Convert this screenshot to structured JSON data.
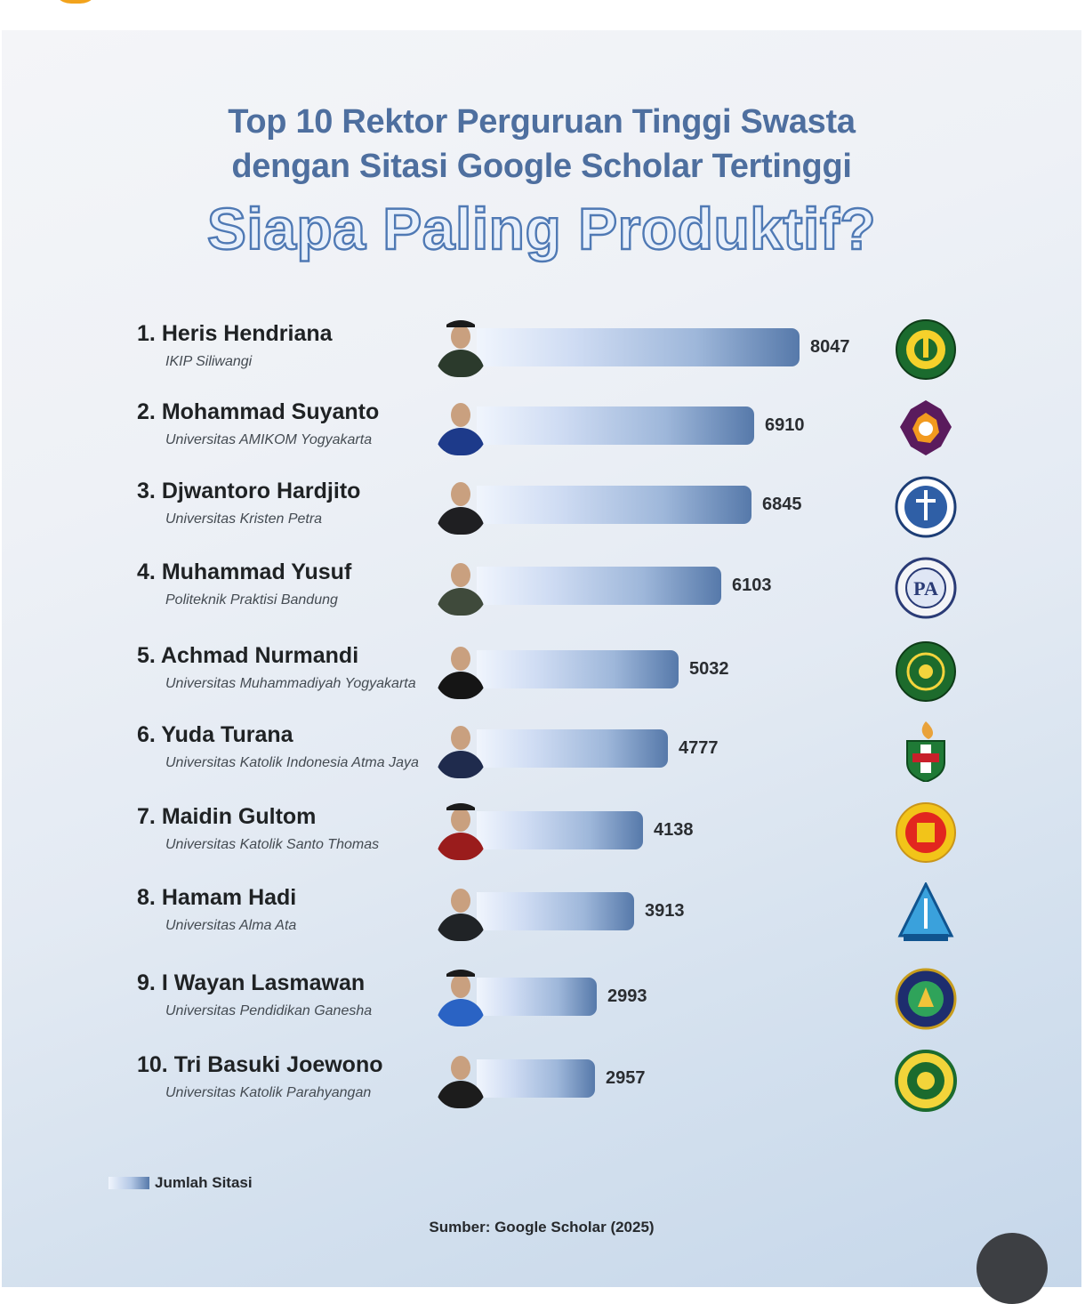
{
  "header": {
    "title_lines": [
      "Top 10 Rektor Perguruan Tinggi Swasta",
      "dengan Sitasi Google Scholar Tertinggi"
    ],
    "subtitle": "Siapa Paling Produktif?"
  },
  "legend": {
    "label": "Jumlah Sitasi"
  },
  "source": "Sumber: Google Scholar (2025)",
  "colors": {
    "title": "#4e6f9f",
    "subtitle_outline": "#4f79b4",
    "bar_start": "#f0f5fd",
    "bar_end": "#5679aa"
  },
  "chart_data": {
    "type": "bar",
    "orientation": "horizontal",
    "title": "Top 10 Rektor Perguruan Tinggi Swasta dengan Sitasi Google Scholar Tertinggi",
    "subtitle": "Siapa Paling Produktif?",
    "legend": [
      "Jumlah Sitasi"
    ],
    "legend_position": "bottom-left",
    "grid": false,
    "source": "Sumber: Google Scholar (2025)",
    "series": [
      {
        "name": "Jumlah Sitasi",
        "values": [
          8047,
          6910,
          6845,
          6103,
          5032,
          4777,
          4138,
          3913,
          2993,
          2957
        ]
      }
    ],
    "rows": [
      {
        "rank": "1.",
        "name": "Heris Hendriana",
        "university": "IKIP Siliwangi",
        "value": 8047,
        "value_label": "8047",
        "logo": "ikip-siliwangi-logo-icon"
      },
      {
        "rank": "2.",
        "name": "Mohammad Suyanto",
        "university": "Universitas AMIKOM Yogyakarta",
        "value": 6910,
        "value_label": "6910",
        "logo": "amikom-logo-icon"
      },
      {
        "rank": "3.",
        "name": "Djwantoro Hardjito",
        "university": "Universitas Kristen Petra",
        "value": 6845,
        "value_label": "6845",
        "logo": "petra-logo-icon"
      },
      {
        "rank": "4.",
        "name": "Muhammad Yusuf",
        "university": "Politeknik Praktisi Bandung",
        "value": 6103,
        "value_label": "6103",
        "logo": "praktisi-logo-icon"
      },
      {
        "rank": "5.",
        "name": "Achmad Nurmandi",
        "university": "Universitas Muhammadiyah Yogyakarta",
        "value": 5032,
        "value_label": "5032",
        "logo": "umy-logo-icon"
      },
      {
        "rank": "6.",
        "name": "Yuda Turana",
        "university": "Universitas Katolik Indonesia Atma Jaya",
        "value": 4777,
        "value_label": "4777",
        "logo": "atma-jaya-logo-icon"
      },
      {
        "rank": "7.",
        "name": "Maidin Gultom",
        "university": "Universitas Katolik Santo Thomas",
        "value": 4138,
        "value_label": "4138",
        "logo": "santo-thomas-logo-icon"
      },
      {
        "rank": "8.",
        "name": "Hamam Hadi",
        "university": "Universitas Alma Ata",
        "value": 3913,
        "value_label": "3913",
        "logo": "alma-ata-logo-icon"
      },
      {
        "rank": "9.",
        "name": "I Wayan Lasmawan",
        "university": "Universitas Pendidikan Ganesha",
        "value": 2993,
        "value_label": "2993",
        "logo": "undiksha-logo-icon"
      },
      {
        "rank": "10.",
        "name": "Tri Basuki Joewono",
        "university": "Universitas Katolik Parahyangan",
        "value": 2957,
        "value_label": "2957",
        "logo": "unpar-logo-icon"
      }
    ]
  }
}
